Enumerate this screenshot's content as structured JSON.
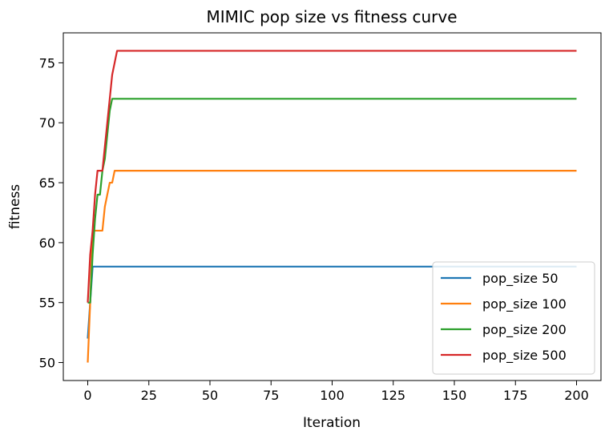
{
  "chart_data": {
    "type": "line",
    "title": "MIMIC pop size vs fitness curve",
    "xlabel": "Iteration",
    "ylabel": "fitness",
    "xlim": [
      -10,
      210
    ],
    "ylim": [
      48.5,
      77.5
    ],
    "xticks": [
      0,
      25,
      50,
      75,
      100,
      125,
      150,
      175,
      200
    ],
    "yticks": [
      50,
      55,
      60,
      65,
      70,
      75
    ],
    "grid": false,
    "legend_position": "bottom-right",
    "series": [
      {
        "name": "pop_size 50",
        "color": "#1f77b4",
        "points": [
          [
            0,
            52
          ],
          [
            1,
            55
          ],
          [
            2,
            58
          ],
          [
            200,
            58
          ]
        ]
      },
      {
        "name": "pop_size 100",
        "color": "#ff7f0e",
        "points": [
          [
            0,
            50
          ],
          [
            1,
            55
          ],
          [
            2,
            61
          ],
          [
            3,
            61
          ],
          [
            4,
            61
          ],
          [
            5,
            61
          ],
          [
            6,
            61
          ],
          [
            7,
            63
          ],
          [
            8,
            64
          ],
          [
            9,
            65
          ],
          [
            10,
            65
          ],
          [
            11,
            66
          ],
          [
            200,
            66
          ]
        ]
      },
      {
        "name": "pop_size 200",
        "color": "#2ca02c",
        "points": [
          [
            0,
            55
          ],
          [
            1,
            55
          ],
          [
            2,
            59
          ],
          [
            3,
            62
          ],
          [
            4,
            64
          ],
          [
            5,
            64
          ],
          [
            6,
            66
          ],
          [
            7,
            67
          ],
          [
            8,
            69
          ],
          [
            9,
            71
          ],
          [
            10,
            72
          ],
          [
            200,
            72
          ]
        ]
      },
      {
        "name": "pop_size 500",
        "color": "#d62728",
        "points": [
          [
            0,
            55
          ],
          [
            1,
            59
          ],
          [
            2,
            61
          ],
          [
            3,
            64
          ],
          [
            4,
            66
          ],
          [
            5,
            66
          ],
          [
            6,
            66
          ],
          [
            7,
            68
          ],
          [
            8,
            70
          ],
          [
            9,
            72
          ],
          [
            10,
            74
          ],
          [
            11,
            75
          ],
          [
            12,
            76
          ],
          [
            200,
            76
          ]
        ]
      }
    ]
  }
}
